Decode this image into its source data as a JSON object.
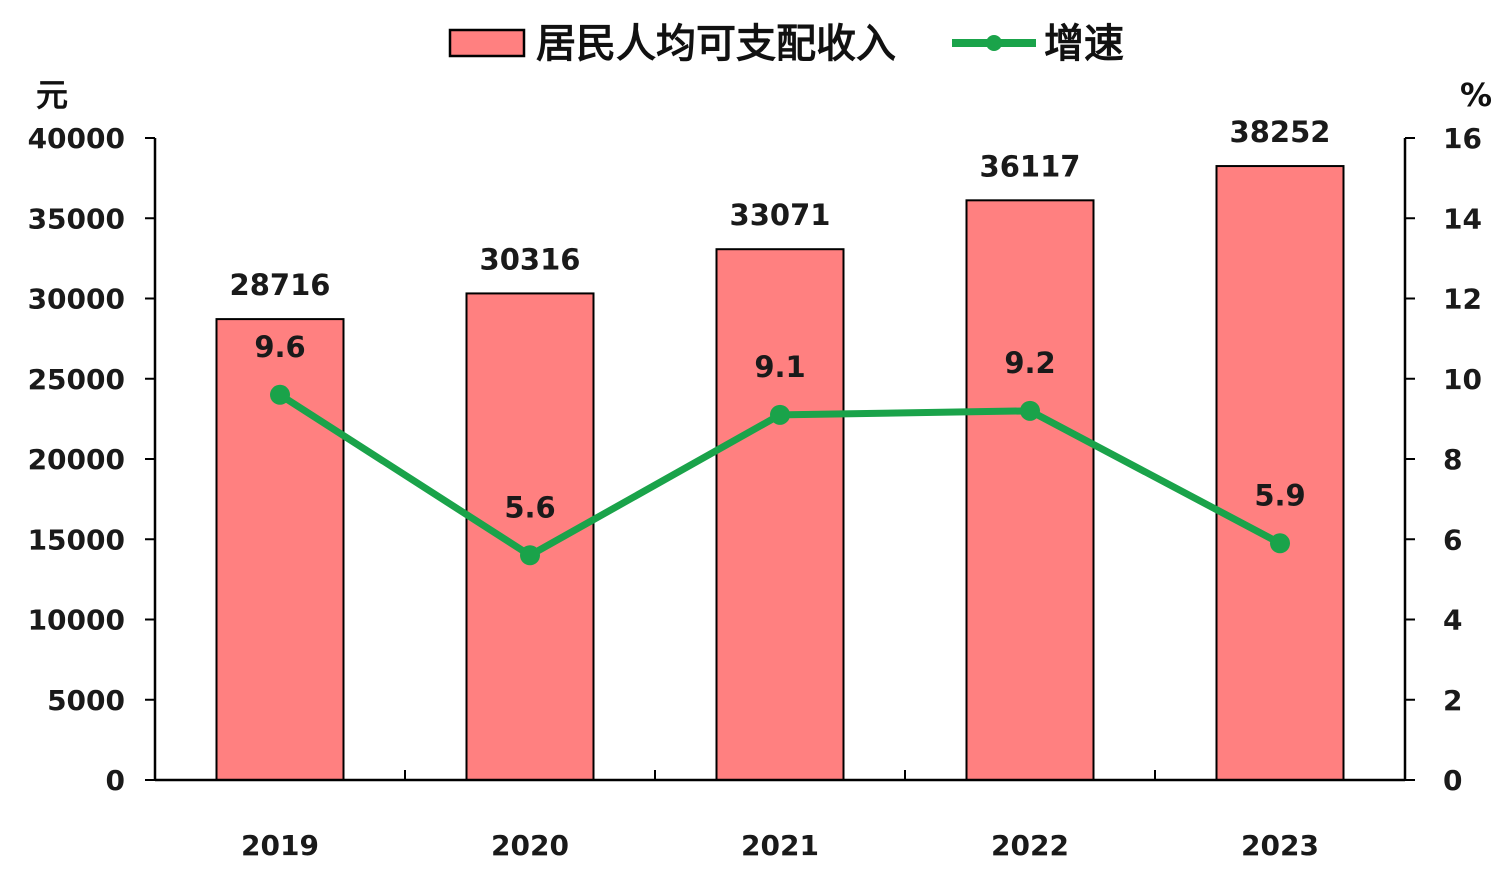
{
  "chart_data": {
    "type": "bar",
    "categories": [
      "2019",
      "2020",
      "2021",
      "2022",
      "2023"
    ],
    "series": [
      {
        "name": "居民人均可支配收入",
        "kind": "bar",
        "axis": "left",
        "values": [
          28716,
          30316,
          33071,
          36117,
          38252
        ],
        "color": "#FF8080"
      },
      {
        "name": "增速",
        "kind": "line",
        "axis": "right",
        "values": [
          9.6,
          5.6,
          9.1,
          9.2,
          5.9
        ],
        "color": "#1AA34A"
      }
    ],
    "ylabel_left": "元",
    "ylabel_right": "%",
    "ylim_left": [
      0,
      40000
    ],
    "yticks_left": [
      0,
      5000,
      10000,
      15000,
      20000,
      25000,
      30000,
      35000,
      40000
    ],
    "ylim_right": [
      0,
      16
    ],
    "yticks_right": [
      0,
      2,
      4,
      6,
      8,
      10,
      12,
      14,
      16
    ],
    "grid": false,
    "legend_position": "top-center",
    "bar_data_labels": [
      "28716",
      "30316",
      "33071",
      "36117",
      "38252"
    ],
    "line_data_labels": [
      "9.6",
      "5.6",
      "9.1",
      "9.2",
      "5.9"
    ]
  }
}
